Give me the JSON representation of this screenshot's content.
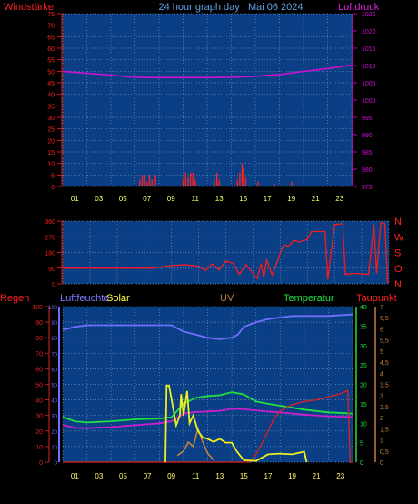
{
  "title": "24 hour graph day : Mai 06 2024",
  "colors": {
    "background": "#000000",
    "plot_bg": "#0A3F86",
    "grid": "#6F8FBF",
    "wind": "#FF2020",
    "pressure": "#D010D0",
    "direction": "#FF1A1A",
    "humidity": "#7070FF",
    "solar": "#EEEE20",
    "uv": "#C08040",
    "temperature": "#20E040",
    "dewpoint": "#CC20CC",
    "rain": "#E02020",
    "title": "#60A0E0"
  },
  "chart_data": [
    {
      "type": "bar",
      "left_label": "Windstärke",
      "right_label": "Luftdruck",
      "x_ticks": [
        "01",
        "03",
        "05",
        "07",
        "09",
        "11",
        "13",
        "15",
        "17",
        "19",
        "21",
        "23"
      ],
      "y_left_ticks": [
        "75",
        "70",
        "65",
        "60",
        "55",
        "50",
        "45",
        "40",
        "35",
        "30",
        "25",
        "20",
        "15",
        "10",
        "5",
        "0"
      ],
      "y_left_range": [
        0,
        75
      ],
      "y_right_ticks": [
        "1025",
        "1020",
        "1015",
        "1010",
        "1005",
        "1000",
        "995",
        "990",
        "985",
        "980",
        "975"
      ],
      "y_right_range": [
        975,
        1025
      ],
      "grid": true,
      "wind_bars": [
        {
          "x": 6.4,
          "v": 3
        },
        {
          "x": 6.6,
          "v": 5
        },
        {
          "x": 6.8,
          "v": 5
        },
        {
          "x": 7.0,
          "v": 2
        },
        {
          "x": 7.2,
          "v": 5
        },
        {
          "x": 7.4,
          "v": 3
        },
        {
          "x": 7.7,
          "v": 5
        },
        {
          "x": 10.0,
          "v": 3
        },
        {
          "x": 10.2,
          "v": 6
        },
        {
          "x": 10.4,
          "v": 4
        },
        {
          "x": 10.6,
          "v": 6
        },
        {
          "x": 10.8,
          "v": 6
        },
        {
          "x": 11.0,
          "v": 3
        },
        {
          "x": 12.6,
          "v": 3
        },
        {
          "x": 12.8,
          "v": 6
        },
        {
          "x": 13.0,
          "v": 3
        },
        {
          "x": 14.5,
          "v": 3
        },
        {
          "x": 14.7,
          "v": 6
        },
        {
          "x": 14.9,
          "v": 10
        },
        {
          "x": 15.0,
          "v": 8
        },
        {
          "x": 15.2,
          "v": 4
        },
        {
          "x": 16.2,
          "v": 2
        },
        {
          "x": 17.6,
          "v": 1
        },
        {
          "x": 19.0,
          "v": 2
        }
      ],
      "pressure": [
        {
          "x": 0,
          "y": 1008.3
        },
        {
          "x": 2,
          "y": 1007.8
        },
        {
          "x": 4,
          "y": 1007.2
        },
        {
          "x": 6,
          "y": 1006.6
        },
        {
          "x": 8,
          "y": 1006.5
        },
        {
          "x": 10,
          "y": 1006.5
        },
        {
          "x": 12,
          "y": 1006.5
        },
        {
          "x": 14,
          "y": 1006.6
        },
        {
          "x": 16,
          "y": 1006.9
        },
        {
          "x": 18,
          "y": 1007.4
        },
        {
          "x": 20,
          "y": 1008.3
        },
        {
          "x": 22,
          "y": 1009.1
        },
        {
          "x": 24,
          "y": 1010.1
        }
      ]
    },
    {
      "type": "line",
      "y_ticks": [
        "360",
        "270",
        "180",
        "90",
        "0"
      ],
      "y_range": [
        0,
        360
      ],
      "right_labels": [
        "N",
        "W",
        "S",
        "O",
        "N"
      ],
      "grid": true,
      "direction": [
        {
          "x": 0,
          "y": 90
        },
        {
          "x": 4,
          "y": 90
        },
        {
          "x": 6.5,
          "y": 90
        },
        {
          "x": 7,
          "y": 95
        },
        {
          "x": 8,
          "y": 105
        },
        {
          "x": 9,
          "y": 110
        },
        {
          "x": 10,
          "y": 100
        },
        {
          "x": 10.5,
          "y": 75
        },
        {
          "x": 11,
          "y": 115
        },
        {
          "x": 11.5,
          "y": 80
        },
        {
          "x": 12,
          "y": 130
        },
        {
          "x": 12.5,
          "y": 120
        },
        {
          "x": 13,
          "y": 55
        },
        {
          "x": 13.5,
          "y": 110
        },
        {
          "x": 14,
          "y": 60
        },
        {
          "x": 14.3,
          "y": 30
        },
        {
          "x": 14.6,
          "y": 115
        },
        {
          "x": 14.8,
          "y": 35
        },
        {
          "x": 15,
          "y": 140
        },
        {
          "x": 15.4,
          "y": 50
        },
        {
          "x": 15.8,
          "y": 130
        },
        {
          "x": 16,
          "y": 175
        },
        {
          "x": 16.3,
          "y": 225
        },
        {
          "x": 16.6,
          "y": 215
        },
        {
          "x": 17,
          "y": 250
        },
        {
          "x": 17.4,
          "y": 240
        },
        {
          "x": 18,
          "y": 255
        },
        {
          "x": 18.3,
          "y": 300
        },
        {
          "x": 19.3,
          "y": 300
        },
        {
          "x": 19.5,
          "y": 25
        },
        {
          "x": 20,
          "y": 340
        },
        {
          "x": 20.6,
          "y": 345
        },
        {
          "x": 20.8,
          "y": 55
        },
        {
          "x": 21.5,
          "y": 60
        },
        {
          "x": 22.5,
          "y": 55
        },
        {
          "x": 22.9,
          "y": 340
        },
        {
          "x": 23.1,
          "y": 60
        },
        {
          "x": 23.4,
          "y": 350
        },
        {
          "x": 23.7,
          "y": 345
        },
        {
          "x": 23.9,
          "y": 15
        },
        {
          "x": 24,
          "y": 5
        }
      ]
    },
    {
      "type": "line",
      "labels": {
        "rain": "Regen",
        "humidity": "Luftfeuchte",
        "solar": "Solar",
        "uv": "UV",
        "temperature": "Temperatur",
        "dewpoint": "Taupunkt"
      },
      "rain_ticks": [
        "100",
        "90",
        "80",
        "70",
        "60",
        "50",
        "40",
        "30",
        "20",
        "10",
        "0"
      ],
      "rain_range": [
        0,
        100
      ],
      "temp_ticks": [
        "40",
        "35",
        "30",
        "25",
        "20",
        "15",
        "10",
        "5",
        "0"
      ],
      "temp_range": [
        0,
        40
      ],
      "uv_ticks": [
        "7",
        "6,5",
        "6",
        "5,5",
        "5",
        "4,5",
        "4",
        "3,5",
        "3",
        "2,5",
        "2",
        "1,5",
        "1",
        "0,5",
        "0"
      ],
      "uv_range": [
        0,
        7
      ],
      "grid": true,
      "humidity": [
        {
          "x": 0,
          "y": 85
        },
        {
          "x": 1,
          "y": 87
        },
        {
          "x": 2,
          "y": 88
        },
        {
          "x": 4,
          "y": 88
        },
        {
          "x": 6,
          "y": 88
        },
        {
          "x": 8,
          "y": 88
        },
        {
          "x": 9,
          "y": 88
        },
        {
          "x": 10,
          "y": 84
        },
        {
          "x": 11,
          "y": 82
        },
        {
          "x": 12,
          "y": 80
        },
        {
          "x": 13,
          "y": 79
        },
        {
          "x": 14,
          "y": 80
        },
        {
          "x": 14.5,
          "y": 82
        },
        {
          "x": 15,
          "y": 87
        },
        {
          "x": 16,
          "y": 90
        },
        {
          "x": 17,
          "y": 92
        },
        {
          "x": 18,
          "y": 93
        },
        {
          "x": 19,
          "y": 94
        },
        {
          "x": 20,
          "y": 94
        },
        {
          "x": 22,
          "y": 94
        },
        {
          "x": 24,
          "y": 95
        }
      ],
      "solar": [
        {
          "x": 8.5,
          "y": 0
        },
        {
          "x": 8.6,
          "y": 19.7
        },
        {
          "x": 8.8,
          "y": 19.7
        },
        {
          "x": 9.4,
          "y": 9.5
        },
        {
          "x": 9.7,
          "y": 12
        },
        {
          "x": 9.8,
          "y": 17.5
        },
        {
          "x": 10.0,
          "y": 12
        },
        {
          "x": 10.3,
          "y": 18.3
        },
        {
          "x": 10.5,
          "y": 10
        },
        {
          "x": 10.8,
          "y": 12
        },
        {
          "x": 11.2,
          "y": 8
        },
        {
          "x": 11.6,
          "y": 6.3
        },
        {
          "x": 12,
          "y": 6
        },
        {
          "x": 12.5,
          "y": 5.2
        },
        {
          "x": 13,
          "y": 6
        },
        {
          "x": 13.5,
          "y": 5
        },
        {
          "x": 14,
          "y": 5
        },
        {
          "x": 14.4,
          "y": 2.8
        },
        {
          "x": 15,
          "y": 0.5
        },
        {
          "x": 16,
          "y": 0.3
        },
        {
          "x": 17,
          "y": 2
        },
        {
          "x": 18,
          "y": 2.2
        },
        {
          "x": 19,
          "y": 2
        },
        {
          "x": 20,
          "y": 2.7
        },
        {
          "x": 20.2,
          "y": 0
        }
      ],
      "uv": [
        {
          "x": 9.5,
          "y": 0.3
        },
        {
          "x": 10,
          "y": 0.5
        },
        {
          "x": 10.4,
          "y": 0.9
        },
        {
          "x": 10.8,
          "y": 0.7
        },
        {
          "x": 11.2,
          "y": 1.5
        },
        {
          "x": 11.6,
          "y": 0.9
        },
        {
          "x": 12,
          "y": 0.4
        },
        {
          "x": 12.5,
          "y": 0.1
        }
      ],
      "temperature": [
        {
          "x": 0,
          "y": 11.6
        },
        {
          "x": 1,
          "y": 10.5
        },
        {
          "x": 2,
          "y": 10.2
        },
        {
          "x": 4,
          "y": 10.5
        },
        {
          "x": 6,
          "y": 11
        },
        {
          "x": 8,
          "y": 11.2
        },
        {
          "x": 9,
          "y": 11.5
        },
        {
          "x": 10,
          "y": 15
        },
        {
          "x": 11,
          "y": 16.5
        },
        {
          "x": 12,
          "y": 17
        },
        {
          "x": 13,
          "y": 17.2
        },
        {
          "x": 14,
          "y": 18
        },
        {
          "x": 15,
          "y": 17.4
        },
        {
          "x": 16,
          "y": 15.6
        },
        {
          "x": 17,
          "y": 15
        },
        {
          "x": 18,
          "y": 14.5
        },
        {
          "x": 19,
          "y": 14
        },
        {
          "x": 20,
          "y": 13.5
        },
        {
          "x": 22,
          "y": 12.8
        },
        {
          "x": 24,
          "y": 12.5
        }
      ],
      "dewpoint": [
        {
          "x": 0,
          "y": 9.6
        },
        {
          "x": 1,
          "y": 8.8
        },
        {
          "x": 2,
          "y": 8.7
        },
        {
          "x": 4,
          "y": 9
        },
        {
          "x": 6,
          "y": 9.5
        },
        {
          "x": 8,
          "y": 10
        },
        {
          "x": 9,
          "y": 10.5
        },
        {
          "x": 10,
          "y": 12.5
        },
        {
          "x": 11,
          "y": 12.9
        },
        {
          "x": 12,
          "y": 13
        },
        {
          "x": 13,
          "y": 13.2
        },
        {
          "x": 14,
          "y": 13.7
        },
        {
          "x": 15,
          "y": 13.6
        },
        {
          "x": 16,
          "y": 13.3
        },
        {
          "x": 17,
          "y": 13
        },
        {
          "x": 18,
          "y": 12.8
        },
        {
          "x": 19,
          "y": 12.5
        },
        {
          "x": 20,
          "y": 12.2
        },
        {
          "x": 22,
          "y": 11.8
        },
        {
          "x": 24,
          "y": 11.6
        }
      ],
      "rain": [
        {
          "x": 0,
          "y": 0
        },
        {
          "x": 15.5,
          "y": 0
        },
        {
          "x": 16,
          "y": 5
        },
        {
          "x": 16.5,
          "y": 12
        },
        {
          "x": 17,
          "y": 20
        },
        {
          "x": 17.5,
          "y": 28
        },
        {
          "x": 18,
          "y": 33
        },
        {
          "x": 19,
          "y": 37
        },
        {
          "x": 20,
          "y": 39
        },
        {
          "x": 21,
          "y": 40
        },
        {
          "x": 22,
          "y": 42
        },
        {
          "x": 23,
          "y": 44
        },
        {
          "x": 23.6,
          "y": 46
        },
        {
          "x": 23.8,
          "y": 0
        },
        {
          "x": 24,
          "y": 0
        }
      ]
    }
  ]
}
